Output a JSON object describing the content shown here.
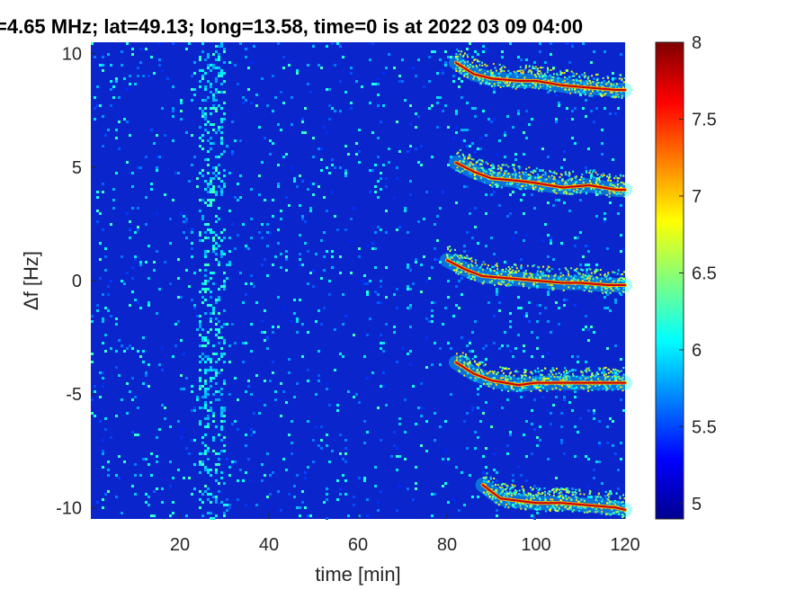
{
  "chart_data": {
    "type": "heatmap",
    "title": "=4.65 MHz;  lat=49.13; long=13.58, time=0 is at 2022 03 09 04:00",
    "xlabel": "time [min]",
    "ylabel": "Δf [Hz]",
    "xlim": [
      0,
      120
    ],
    "ylim": [
      -10.5,
      10.5
    ],
    "x_ticks": [
      20,
      40,
      60,
      80,
      100,
      120
    ],
    "x_tick_labels": [
      "20",
      "40",
      "60",
      "80",
      "100",
      "120"
    ],
    "y_ticks": [
      10,
      5,
      0,
      -5,
      -10
    ],
    "y_tick_labels": [
      "10",
      "5",
      "0",
      "-5",
      "-10"
    ],
    "colorbar": {
      "range": [
        4.9,
        8
      ],
      "ticks": [
        8,
        7.5,
        7,
        6.5,
        6,
        5.5,
        5
      ],
      "tick_labels": [
        "8",
        "7.5",
        "7",
        "6.5",
        "6",
        "5.5",
        "5"
      ],
      "colormap": "jet"
    },
    "background_level": 5.1,
    "noise_band": {
      "x_range": [
        24,
        30
      ],
      "level": 5.7
    },
    "traces": [
      {
        "points": [
          [
            82,
            9.6
          ],
          [
            86,
            9.1
          ],
          [
            90,
            8.9
          ],
          [
            96,
            8.8
          ],
          [
            100,
            8.8
          ],
          [
            106,
            8.6
          ],
          [
            112,
            8.5
          ],
          [
            118,
            8.4
          ],
          [
            120,
            8.4
          ]
        ]
      },
      {
        "points": [
          [
            82,
            5.2
          ],
          [
            86,
            4.8
          ],
          [
            90,
            4.5
          ],
          [
            96,
            4.4
          ],
          [
            100,
            4.3
          ],
          [
            106,
            4.1
          ],
          [
            112,
            4.2
          ],
          [
            118,
            4.0
          ],
          [
            120,
            4.0
          ]
        ]
      },
      {
        "points": [
          [
            80,
            0.9
          ],
          [
            84,
            0.5
          ],
          [
            88,
            0.2
          ],
          [
            94,
            0.1
          ],
          [
            100,
            0.0
          ],
          [
            106,
            -0.1
          ],
          [
            110,
            -0.1
          ],
          [
            116,
            -0.2
          ],
          [
            120,
            -0.2
          ]
        ]
      },
      {
        "points": [
          [
            82,
            -3.6
          ],
          [
            86,
            -4.1
          ],
          [
            90,
            -4.4
          ],
          [
            96,
            -4.6
          ],
          [
            100,
            -4.5
          ],
          [
            106,
            -4.5
          ],
          [
            112,
            -4.5
          ],
          [
            118,
            -4.5
          ],
          [
            120,
            -4.5
          ]
        ]
      },
      {
        "points": [
          [
            88,
            -9.0
          ],
          [
            92,
            -9.6
          ],
          [
            96,
            -9.7
          ],
          [
            100,
            -9.8
          ],
          [
            106,
            -9.8
          ],
          [
            112,
            -9.9
          ],
          [
            118,
            -10.0
          ],
          [
            120,
            -10.1
          ]
        ]
      }
    ]
  }
}
